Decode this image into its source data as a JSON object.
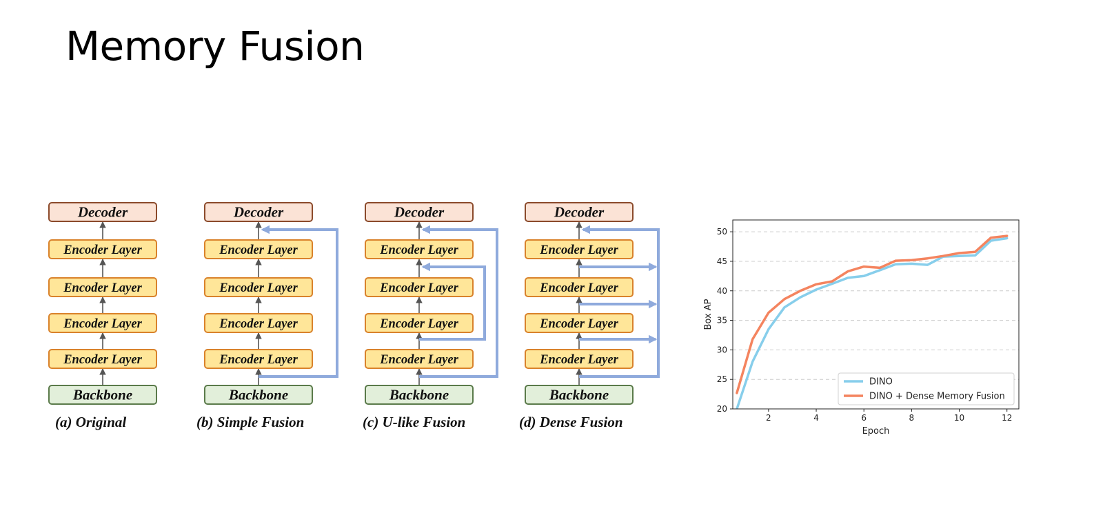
{
  "slide": {
    "title": "Memory Fusion"
  },
  "diagram": {
    "node_labels": {
      "decoder": "Decoder",
      "encoder": "Encoder Layer",
      "backbone": "Backbone"
    },
    "panels": [
      {
        "caption": "(a) Original"
      },
      {
        "caption": "(b) Simple Fusion"
      },
      {
        "caption": "(c) U-like Fusion"
      },
      {
        "caption": "(d) Dense Fusion"
      }
    ],
    "colors": {
      "decoder_fill": "#fbe3d6",
      "decoder_stroke": "#8b4a2b",
      "encoder_fill": "#ffe699",
      "encoder_stroke": "#d9822b",
      "backbone_fill": "#e2efda",
      "backbone_stroke": "#5a7a4a",
      "arrow": "#555555",
      "fusion": "#8faadc"
    }
  },
  "chart_data": {
    "type": "line",
    "xlabel": "Epoch",
    "ylabel": "Box AP",
    "xlim": [
      0.5,
      12.5
    ],
    "ylim": [
      20,
      52
    ],
    "xticks": [
      2,
      4,
      6,
      8,
      10,
      12
    ],
    "yticks": [
      20,
      25,
      30,
      35,
      40,
      45,
      50
    ],
    "grid": "horizontal-dashed",
    "legend_position": "lower-right",
    "series": [
      {
        "name": "DINO",
        "color": "#87ceeb",
        "x": [
          0.67,
          1.33,
          2,
          2.67,
          3.33,
          4,
          4.67,
          5.33,
          6,
          6.67,
          7.33,
          8,
          8.67,
          9.33,
          10,
          10.67,
          11.33,
          12
        ],
        "y": [
          20.0,
          28.0,
          33.5,
          37.2,
          38.9,
          40.2,
          41.2,
          42.2,
          42.5,
          43.5,
          44.5,
          44.6,
          44.4,
          45.8,
          45.9,
          46.0,
          48.5,
          48.9
        ]
      },
      {
        "name": "DINO + Dense Memory Fusion",
        "color": "#f4845f",
        "x": [
          0.67,
          1.33,
          2,
          2.67,
          3.33,
          4,
          4.67,
          5.33,
          6,
          6.67,
          7.33,
          8,
          8.67,
          9.33,
          10,
          10.67,
          11.33,
          12
        ],
        "y": [
          22.7,
          31.8,
          36.3,
          38.6,
          40.0,
          41.1,
          41.6,
          43.3,
          44.1,
          43.9,
          45.1,
          45.2,
          45.5,
          45.9,
          46.4,
          46.6,
          49.0,
          49.3
        ]
      }
    ]
  }
}
